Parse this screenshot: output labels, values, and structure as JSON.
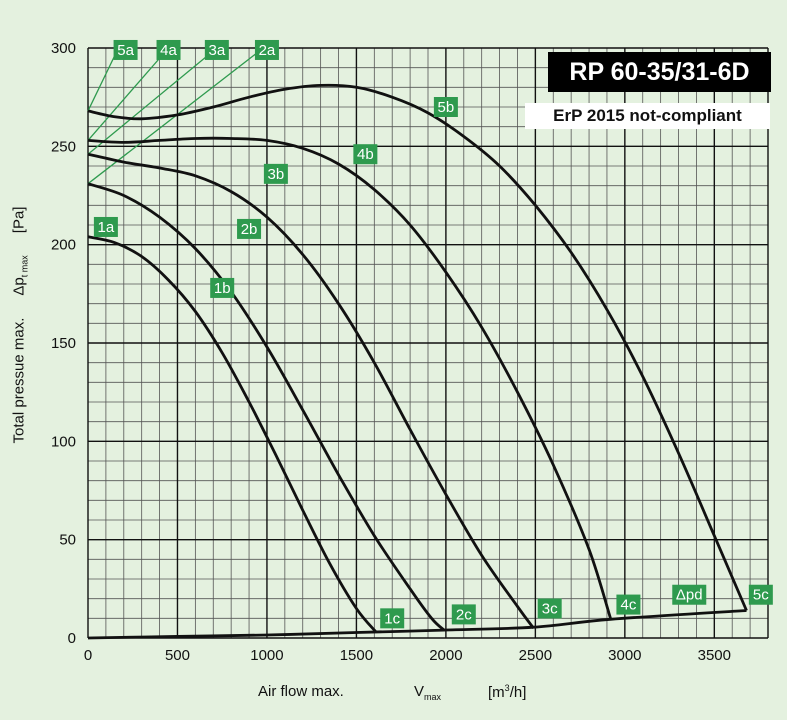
{
  "title": "RP 60-35/31-6D",
  "erp_note": "ErP 2015 not-compliant",
  "colors": {
    "background": "#e4f1df",
    "label_green": "#2e9a4e",
    "guide_green": "#2e9a4e",
    "curve": "#111111"
  },
  "axes": {
    "x_label": "Air flow max.",
    "x_symbol": "V",
    "x_symbol_sub": "max",
    "x_unit_pre": "[m",
    "x_unit_sup": "3",
    "x_unit_post": "/h]",
    "y_label": "Total pressue max.",
    "y_symbol": "Δp",
    "y_symbol_sub": "t max",
    "y_unit": "[Pa]"
  },
  "chart_data": {
    "type": "line",
    "title": "RP 60-35/31-6D",
    "xlabel": "Air flow max. Vmax [m³/h]",
    "ylabel": "Total pressue max. Δpt max [Pa]",
    "xlim": [
      0,
      3800
    ],
    "ylim": [
      0,
      300
    ],
    "x_ticks": [
      0,
      500,
      1000,
      1500,
      2000,
      2500,
      3000,
      3500
    ],
    "y_ticks": [
      0,
      50,
      100,
      150,
      200,
      250,
      300
    ],
    "grid": true,
    "series": [
      {
        "name": "1",
        "points": [
          [
            0,
            204
          ],
          [
            150,
            201
          ],
          [
            300,
            194
          ],
          [
            450,
            182
          ],
          [
            600,
            166
          ],
          [
            750,
            145
          ],
          [
            900,
            120
          ],
          [
            1050,
            93
          ],
          [
            1200,
            65
          ],
          [
            1350,
            38
          ],
          [
            1500,
            15
          ],
          [
            1610,
            3
          ]
        ]
      },
      {
        "name": "2",
        "points": [
          [
            0,
            231
          ],
          [
            200,
            225
          ],
          [
            400,
            214
          ],
          [
            600,
            198
          ],
          [
            800,
            176
          ],
          [
            1000,
            148
          ],
          [
            1200,
            116
          ],
          [
            1400,
            83
          ],
          [
            1600,
            52
          ],
          [
            1800,
            25
          ],
          [
            1920,
            10
          ],
          [
            1990,
            4
          ]
        ]
      },
      {
        "name": "3",
        "points": [
          [
            0,
            246
          ],
          [
            200,
            242
          ],
          [
            400,
            239
          ],
          [
            600,
            235
          ],
          [
            800,
            227
          ],
          [
            1000,
            214
          ],
          [
            1200,
            195
          ],
          [
            1400,
            170
          ],
          [
            1600,
            140
          ],
          [
            1800,
            106
          ],
          [
            2000,
            73
          ],
          [
            2200,
            42
          ],
          [
            2400,
            16
          ],
          [
            2490,
            5
          ]
        ]
      },
      {
        "name": "4",
        "points": [
          [
            0,
            253
          ],
          [
            200,
            252
          ],
          [
            400,
            253
          ],
          [
            600,
            254
          ],
          [
            800,
            254
          ],
          [
            1000,
            253
          ],
          [
            1200,
            249
          ],
          [
            1400,
            241
          ],
          [
            1600,
            228
          ],
          [
            1800,
            210
          ],
          [
            2000,
            186
          ],
          [
            2200,
            158
          ],
          [
            2400,
            125
          ],
          [
            2600,
            88
          ],
          [
            2800,
            45
          ],
          [
            2920,
            10
          ]
        ]
      },
      {
        "name": "5",
        "points": [
          [
            0,
            268
          ],
          [
            150,
            265
          ],
          [
            300,
            264
          ],
          [
            500,
            266
          ],
          [
            700,
            270
          ],
          [
            900,
            275
          ],
          [
            1100,
            279
          ],
          [
            1300,
            281
          ],
          [
            1500,
            280
          ],
          [
            1700,
            275
          ],
          [
            1900,
            267
          ],
          [
            2100,
            255
          ],
          [
            2300,
            240
          ],
          [
            2500,
            220
          ],
          [
            2700,
            196
          ],
          [
            2900,
            167
          ],
          [
            3100,
            133
          ],
          [
            3300,
            94
          ],
          [
            3500,
            52
          ],
          [
            3680,
            14
          ]
        ]
      },
      {
        "name": "Δpd",
        "points": [
          [
            0,
            0
          ],
          [
            500,
            0.8
          ],
          [
            1000,
            1.5
          ],
          [
            1500,
            2.8
          ],
          [
            1990,
            4
          ],
          [
            2490,
            5.5
          ],
          [
            2920,
            9.5
          ],
          [
            3680,
            14
          ]
        ]
      }
    ],
    "guide_lines": [
      {
        "label": "5a",
        "from": [
          0,
          268
        ],
        "to": [
          170,
          300
        ]
      },
      {
        "label": "4a",
        "from": [
          0,
          253
        ],
        "to": [
          450,
          300
        ]
      },
      {
        "label": "3a",
        "from": [
          0,
          246
        ],
        "to": [
          720,
          300
        ]
      },
      {
        "label": "2a",
        "from": [
          0,
          231
        ],
        "to": [
          980,
          300
        ]
      }
    ],
    "point_labels": [
      {
        "text": "5a",
        "x": 210,
        "y": 299
      },
      {
        "text": "4a",
        "x": 450,
        "y": 299
      },
      {
        "text": "3a",
        "x": 720,
        "y": 299
      },
      {
        "text": "2a",
        "x": 1000,
        "y": 299
      },
      {
        "text": "1a",
        "x": 100,
        "y": 209
      },
      {
        "text": "5b",
        "x": 2000,
        "y": 270
      },
      {
        "text": "4b",
        "x": 1550,
        "y": 246
      },
      {
        "text": "3b",
        "x": 1050,
        "y": 236
      },
      {
        "text": "2b",
        "x": 900,
        "y": 208
      },
      {
        "text": "1b",
        "x": 750,
        "y": 178
      },
      {
        "text": "1c",
        "x": 1700,
        "y": 10
      },
      {
        "text": "2c",
        "x": 2100,
        "y": 12
      },
      {
        "text": "3c",
        "x": 2580,
        "y": 15
      },
      {
        "text": "4c",
        "x": 3020,
        "y": 17
      },
      {
        "text": "Δpd",
        "x": 3360,
        "y": 22
      },
      {
        "text": "5c",
        "x": 3760,
        "y": 22
      }
    ]
  }
}
